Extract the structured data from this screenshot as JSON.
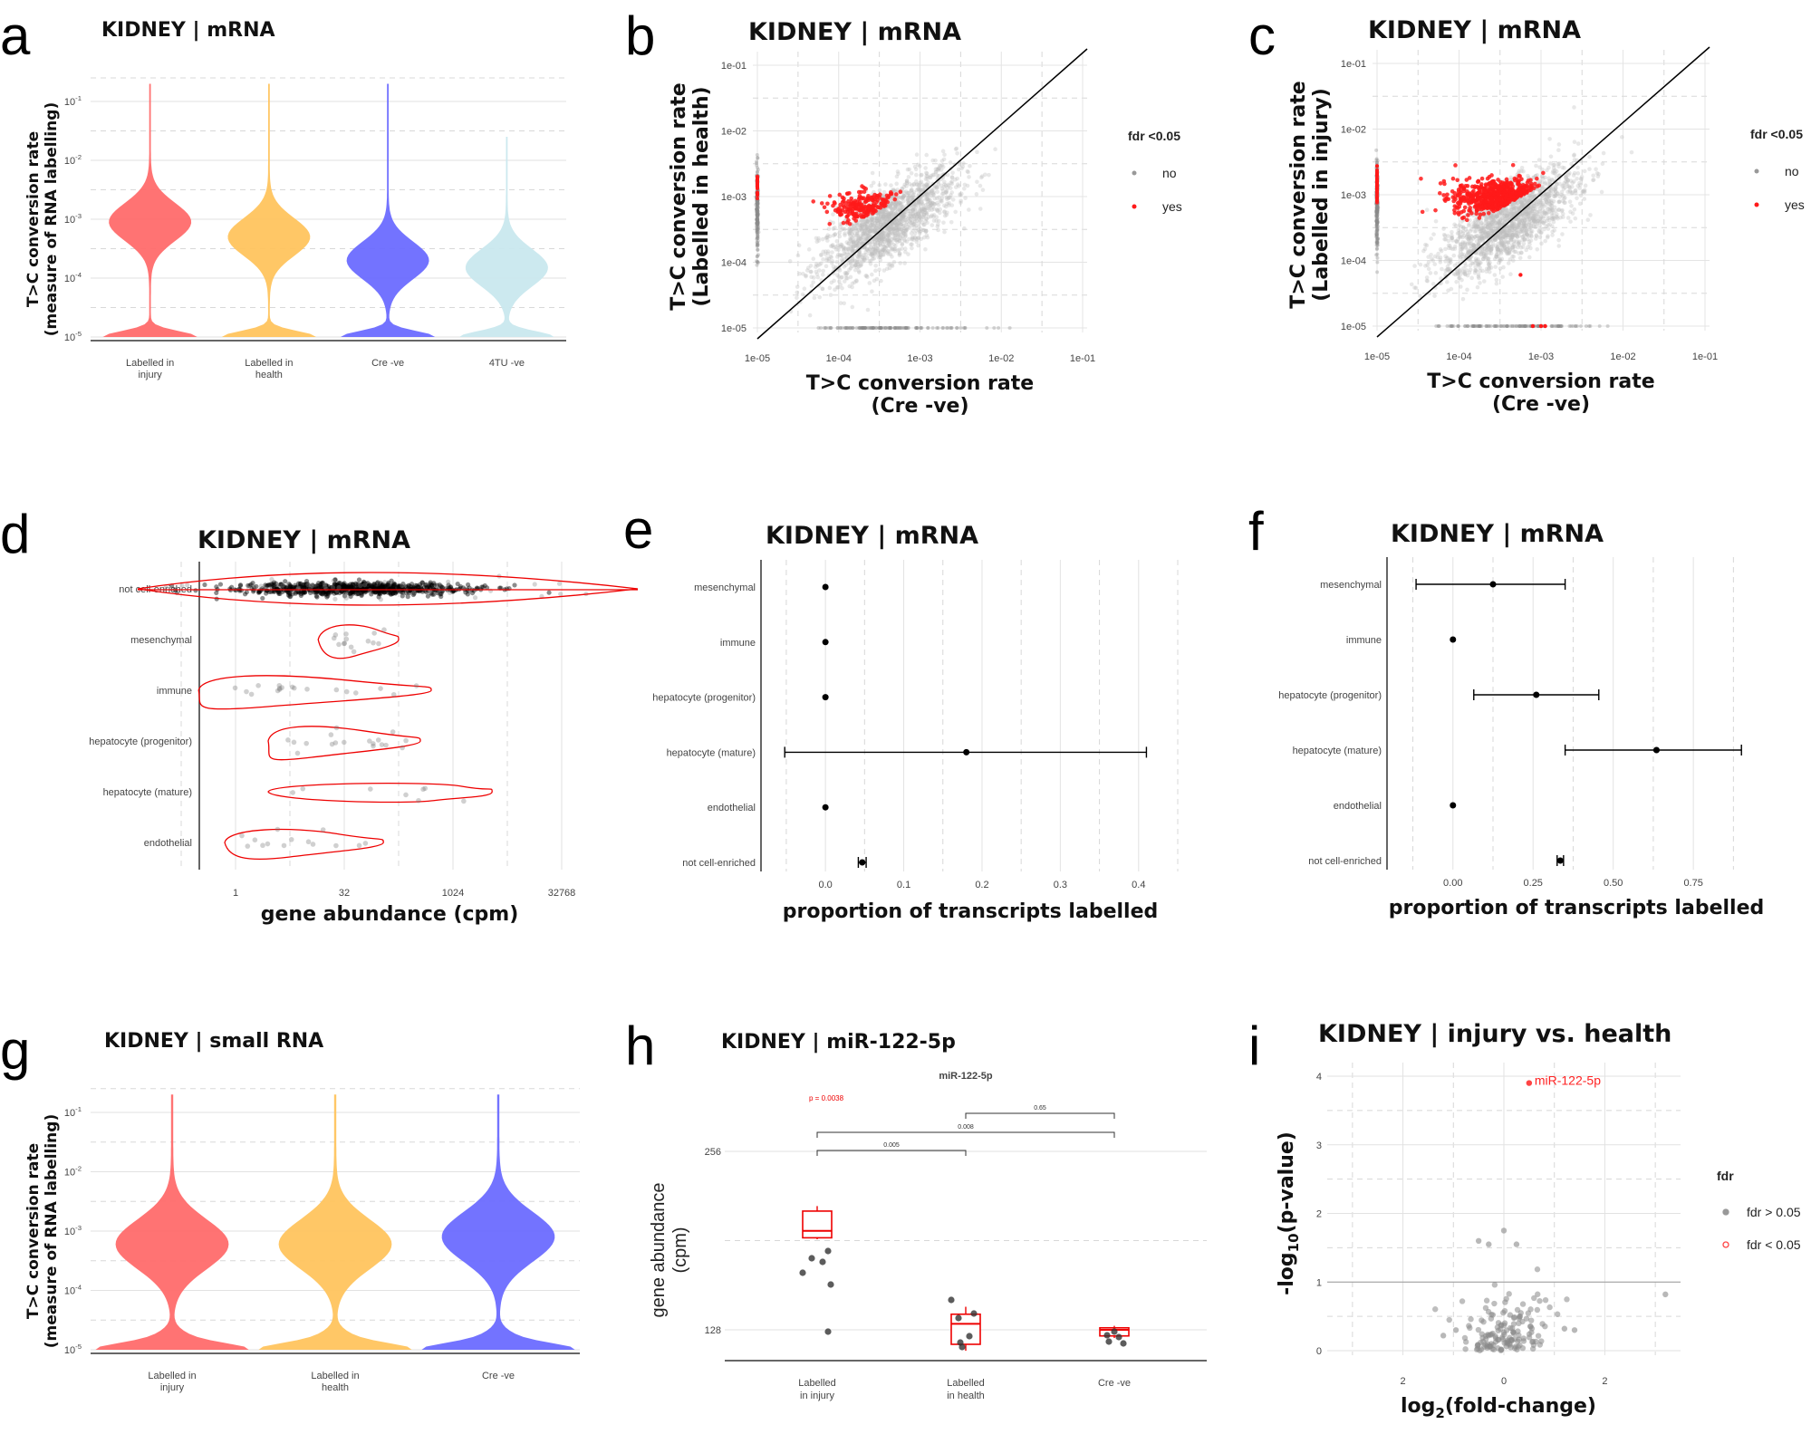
{
  "panels": {
    "a": {
      "label": "a"
    },
    "b": {
      "label": "b"
    },
    "c": {
      "label": "c"
    },
    "d": {
      "label": "d"
    },
    "e": {
      "label": "e"
    },
    "f": {
      "label": "f"
    },
    "g": {
      "label": "g"
    },
    "h": {
      "label": "h"
    },
    "i": {
      "label": "i"
    }
  },
  "chart_data": [
    {
      "id": "a",
      "type": "violin",
      "title": "KIDNEY | mRNA",
      "ylabel": "T>C conversion rate\n(measure of RNA labelling)",
      "yscale": "log10",
      "ylim": [
        1e-05,
        0.1
      ],
      "ytick_labels": [
        "10^-5",
        "10^-4",
        "10^-3",
        "10^-2",
        "10^-1"
      ],
      "categories": [
        "Labelled in injury",
        "Labelled in health",
        "Cre -ve",
        "4TU -ve"
      ],
      "colors": [
        "#ff6b6b",
        "#ffc45e",
        "#6b6bff",
        "#c9e8ee"
      ],
      "medians": [
        0.0009,
        0.0005,
        0.0002,
        0.00015
      ]
    },
    {
      "id": "b",
      "type": "scatter",
      "title": "KIDNEY | mRNA",
      "xlabel": "T>C conversion rate\n(Cre -ve)",
      "ylabel": "T>C conversion rate\n(Labelled in health)",
      "xscale": "log10",
      "yscale": "log10",
      "xlim": [
        1e-05,
        0.1
      ],
      "ylim": [
        1e-05,
        0.1
      ],
      "x_tick_labels": [
        "1e-05",
        "1e-04",
        "1e-03",
        "1e-02",
        "1e-01"
      ],
      "y_tick_labels": [
        "1e-05",
        "1e-04",
        "1e-03",
        "1e-02",
        "1e-01"
      ],
      "legend": {
        "title": "fdr <0.05",
        "entries": [
          "no",
          "yes"
        ],
        "colors": [
          "#999999",
          "#ff1a1a"
        ]
      }
    },
    {
      "id": "c",
      "type": "scatter",
      "title": "KIDNEY | mRNA",
      "xlabel": "T>C conversion rate\n(Cre -ve)",
      "ylabel": "T>C conversion rate\n(Labelled in injury)",
      "xscale": "log10",
      "yscale": "log10",
      "xlim": [
        1e-05,
        0.1
      ],
      "ylim": [
        1e-05,
        0.1
      ],
      "x_tick_labels": [
        "1e-05",
        "1e-04",
        "1e-03",
        "1e-02",
        "1e-01"
      ],
      "y_tick_labels": [
        "1e-05",
        "1e-04",
        "1e-03",
        "1e-02",
        "1e-01"
      ],
      "legend": {
        "title": "fdr <0.05",
        "entries": [
          "no",
          "yes"
        ],
        "colors": [
          "#999999",
          "#ff1a1a"
        ]
      }
    },
    {
      "id": "d",
      "type": "violin-horizontal",
      "title": "KIDNEY | mRNA",
      "xlabel": "gene abundance (cpm)",
      "xscale": "log2",
      "x_tick_labels": [
        "1",
        "32",
        "1024",
        "32768"
      ],
      "categories": [
        "not cell-enriched",
        "mesenchymal",
        "immune",
        "hepatocyte (progenitor)",
        "hepatocyte (mature)",
        "endothelial"
      ]
    },
    {
      "id": "e",
      "type": "errorbar",
      "title": "KIDNEY | mRNA",
      "xlabel": "proportion of transcripts labelled",
      "x_tick_labels": [
        "0.0",
        "0.1",
        "0.2",
        "0.3",
        "0.4"
      ],
      "xlim": [
        -0.08,
        0.45
      ],
      "categories": [
        "mesenchymal",
        "immune",
        "hepatocyte (progenitor)",
        "hepatocyte (mature)",
        "endothelial",
        "not cell-enriched"
      ],
      "values": [
        0.0,
        0.0,
        0.0,
        0.18,
        0.0,
        0.047
      ],
      "lower": [
        0.0,
        0.0,
        0.0,
        -0.052,
        0.0,
        0.042
      ],
      "upper": [
        0.0,
        0.0,
        0.0,
        0.41,
        0.0,
        0.052
      ]
    },
    {
      "id": "f",
      "type": "errorbar",
      "title": "KIDNEY | mRNA",
      "xlabel": "proportion of transcripts labelled",
      "x_tick_labels": [
        "0.00",
        "0.25",
        "0.50",
        "0.75"
      ],
      "xlim": [
        -0.2,
        0.97
      ],
      "categories": [
        "mesenchymal",
        "immune",
        "hepatocyte (progenitor)",
        "hepatocyte (mature)",
        "endothelial",
        "not cell-enriched"
      ],
      "values": [
        0.125,
        0.0,
        0.26,
        0.635,
        0.0,
        0.335
      ],
      "lower": [
        -0.115,
        0.0,
        0.065,
        0.35,
        0.0,
        0.325
      ],
      "upper": [
        0.35,
        0.0,
        0.455,
        0.9,
        0.0,
        0.345
      ]
    },
    {
      "id": "g",
      "type": "violin",
      "title": "KIDNEY | small RNA",
      "ylabel": "T>C conversion rate\n(measure of RNA labelling)",
      "yscale": "log10",
      "ylim": [
        1e-05,
        0.1
      ],
      "ytick_labels": [
        "10^-5",
        "10^-4",
        "10^-3",
        "10^-2",
        "10^-1"
      ],
      "categories": [
        "Labelled in injury",
        "Labelled in health",
        "Cre -ve"
      ],
      "colors": [
        "#ff6b6b",
        "#ffc45e",
        "#6b6bff"
      ],
      "medians": [
        0.0006,
        0.0006,
        0.0008
      ]
    },
    {
      "id": "h",
      "type": "boxplot",
      "title": "KIDNEY  | miR-122-5p",
      "subtitle": "miR-122-5p",
      "ylabel": "gene abundance\n(cpm)",
      "yscale": "log2",
      "y_tick_labels": [
        "128",
        "256"
      ],
      "categories": [
        "Labelled in injury",
        "Labelled in health",
        "Cre -ve"
      ],
      "medians": [
        188,
        131,
        128
      ],
      "annotations": [
        "p = 0.0038",
        "0.005",
        "0.008",
        "0.65"
      ]
    },
    {
      "id": "i",
      "type": "volcano",
      "title": "KIDNEY | injury vs. health",
      "xlabel": "log2(fold-change)",
      "ylabel": "-log10(p-value)",
      "x_tick_labels": [
        "2",
        "0",
        "2"
      ],
      "y_tick_labels": [
        "0",
        "1",
        "2",
        "3",
        "4"
      ],
      "xlim": [
        -3.5,
        3.5
      ],
      "ylim": [
        0,
        4
      ],
      "highlight": {
        "label": "miR-122-5p",
        "x": 0.5,
        "y": 3.9
      },
      "legend": {
        "title": "fdr",
        "entries": [
          "fdr > 0.05",
          "fdr < 0.05"
        ],
        "colors": [
          "#999999",
          "#ff4444"
        ]
      }
    }
  ]
}
